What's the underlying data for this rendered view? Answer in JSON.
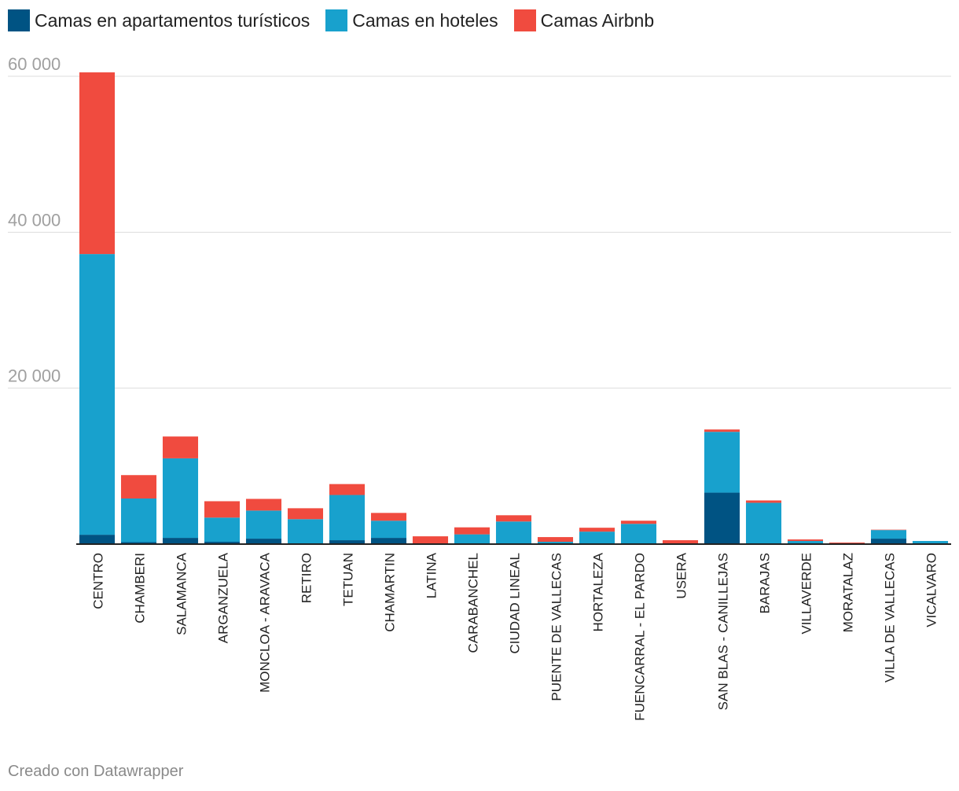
{
  "chart_data": {
    "type": "bar",
    "stacked": true,
    "categories": [
      "CENTRO",
      "CHAMBERI",
      "SALAMANCA",
      "ARGANZUELA",
      "MONCLOA - ARAVACA",
      "RETIRO",
      "TETUAN",
      "CHAMARTIN",
      "LATINA",
      "CARABANCHEL",
      "CIUDAD LINEAL",
      "PUENTE DE VALLECAS",
      "HORTALEZA",
      "FUENCARRAL - EL PARDO",
      "USERA",
      "SAN BLAS - CANILLEJAS",
      "BARAJAS",
      "VILLAVERDE",
      "MORATALAZ",
      "VILLA DE VALLECAS",
      "VICALVARO"
    ],
    "series": [
      {
        "name": "Camas en apartamentos turísticos",
        "color": "#005383",
        "values": [
          1200,
          250,
          800,
          300,
          700,
          100,
          500,
          800,
          0,
          50,
          100,
          100,
          100,
          0,
          0,
          6600,
          0,
          100,
          0,
          700,
          0
        ]
      },
      {
        "name": "Camas en hoteles",
        "color": "#18a1cd",
        "values": [
          36000,
          5600,
          10200,
          3100,
          3600,
          3100,
          5800,
          2200,
          0,
          1200,
          2800,
          200,
          1500,
          2600,
          100,
          7800,
          5300,
          300,
          0,
          1100,
          400
        ]
      },
      {
        "name": "Camas Airbnb",
        "color": "#f04b3f",
        "values": [
          23300,
          3000,
          2800,
          2100,
          1500,
          1400,
          1400,
          1000,
          1000,
          900,
          800,
          600,
          500,
          400,
          400,
          300,
          300,
          200,
          200,
          50,
          0
        ]
      }
    ],
    "ylim": [
      0,
      60000
    ],
    "yticks": [
      20000,
      40000,
      60000
    ],
    "ytick_labels": [
      "20 000",
      "40 000",
      "60 000"
    ],
    "grid": true,
    "legend_position": "top-left"
  },
  "footer": "Creado con Datawrapper"
}
